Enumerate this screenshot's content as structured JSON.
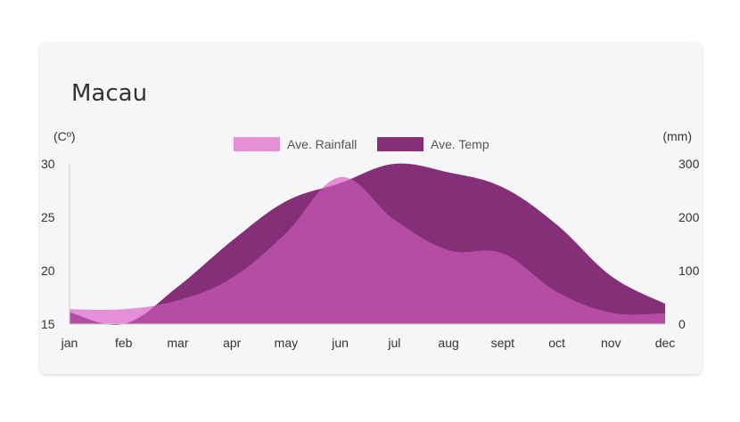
{
  "chart_data": {
    "type": "area",
    "title": "Macau",
    "categories": [
      "jan",
      "feb",
      "mar",
      "apr",
      "may",
      "jun",
      "jul",
      "aug",
      "sept",
      "oct",
      "nov",
      "dec"
    ],
    "left_axis": {
      "unit_label": "(Cº)",
      "ticks": [
        "30",
        "25",
        "20",
        "15"
      ],
      "range": [
        15,
        30
      ]
    },
    "right_axis": {
      "unit_label": "(mm)",
      "ticks": [
        "300",
        "200",
        "100",
        "0"
      ],
      "range": [
        0,
        300
      ]
    },
    "legend_position": "top-center",
    "series": [
      {
        "name": "Ave. Temp",
        "axis": "left",
        "color": "#842f78",
        "values": [
          16.1,
          15.0,
          18.5,
          22.8,
          26.5,
          28.2,
          30.0,
          29.2,
          27.8,
          24.3,
          19.5,
          16.9
        ]
      },
      {
        "name": "Ave. Rainfall",
        "axis": "right",
        "color": "#e58fd8",
        "overlap_color": "#b54da4",
        "values": [
          28,
          28,
          44,
          86,
          170,
          275,
          195,
          138,
          132,
          60,
          21,
          20
        ]
      }
    ]
  }
}
